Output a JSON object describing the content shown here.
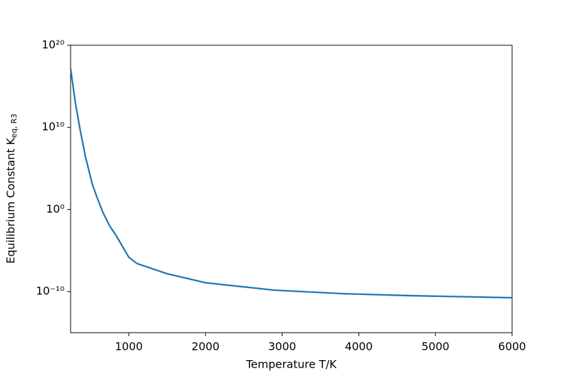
{
  "chart_data": {
    "type": "line",
    "log_y": true,
    "xlabel": "Temperature T/K",
    "ylabel": "Equilibrium Constant K",
    "ylabel_sub": "eq, R3",
    "x": [
      240,
      302,
      365,
      436,
      526,
      580,
      660,
      750,
      839,
      1000,
      1107,
      1500,
      2002,
      2896,
      3791,
      4685,
      6000
    ],
    "series": [
      {
        "name": "K_eq,R3",
        "color": "#1f77b4",
        "values": [
          1.5e+17,
          10000000000000.0,
          4700000000.0,
          2100000.0,
          1000,
          40,
          0.47,
          0.01,
          0.00056,
          1.5e-06,
          2.6e-07,
          1.5e-08,
          1.2e-09,
          1.5e-10,
          5.6e-11,
          3.2e-11,
          1.8e-11
        ]
      }
    ],
    "xlim": [
      240,
      6000
    ],
    "xticks": [
      1000,
      2000,
      3000,
      4000,
      5000,
      6000
    ],
    "ylim": [
      1e-15,
      1e+20
    ],
    "yticks": [
      {
        "value": 1e-10,
        "label": "10⁻¹⁰"
      },
      {
        "value": 1,
        "label": "10⁰"
      },
      {
        "value": 10000000000.0,
        "label": "10¹⁰"
      },
      {
        "value": 1e+20,
        "label": "10²⁰"
      }
    ]
  }
}
